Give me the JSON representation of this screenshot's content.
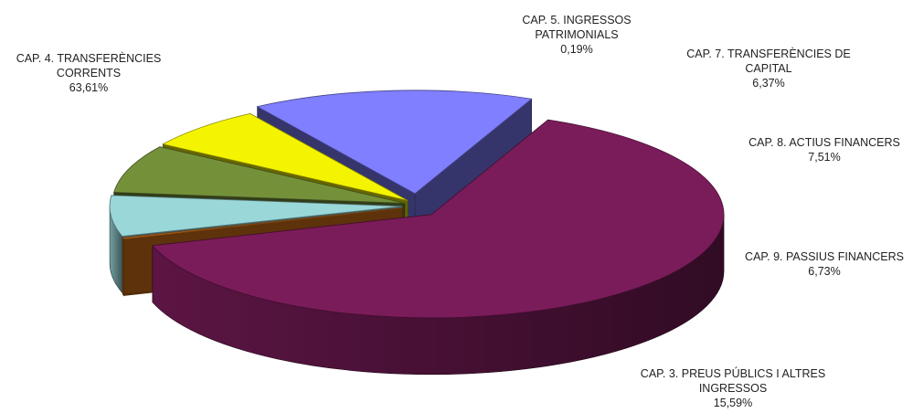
{
  "chart_data": {
    "type": "pie",
    "style": "3d-exploded",
    "title": "",
    "legend": "none",
    "slices": [
      {
        "label_lines": [
          "CAP. 4. TRANSFERÈNCIES",
          "CORRENTS"
        ],
        "label": "CAP. 4. TRANSFERÈNCIES CORRENTS",
        "value": 63.61,
        "value_text": "63,61%",
        "color": "#7B1C5A"
      },
      {
        "label_lines": [
          "CAP. 5. INGRESSOS",
          "PATRIMONIALS"
        ],
        "label": "CAP. 5. INGRESSOS PATRIMONIALS",
        "value": 0.19,
        "value_text": "0,19%",
        "color": "#E07818"
      },
      {
        "label_lines": [
          "CAP. 7. TRANSFERÈNCIES DE",
          "CAPITAL"
        ],
        "label": "CAP. 7. TRANSFERÈNCIES DE CAPITAL",
        "value": 6.37,
        "value_text": "6,37%",
        "color": "#9AD7D9"
      },
      {
        "label_lines": [
          "CAP. 8. ACTIUS FINANCERS"
        ],
        "label": "CAP. 8. ACTIUS FINANCERS",
        "value": 7.51,
        "value_text": "7,51%",
        "color": "#74913A"
      },
      {
        "label_lines": [
          "CAP. 9. PASSIUS FINANCERS"
        ],
        "label": "CAP. 9. PASSIUS FINANCERS",
        "value": 6.73,
        "value_text": "6,73%",
        "color": "#F4F400"
      },
      {
        "label_lines": [
          "CAP. 3. PREUS PÚBLICS I ALTRES",
          "INGRESSOS"
        ],
        "label": "CAP. 3. PREUS PÚBLICS I ALTRES INGRESSOS",
        "value": 15.59,
        "value_text": "15,59%",
        "color": "#7F7FFF"
      }
    ]
  }
}
